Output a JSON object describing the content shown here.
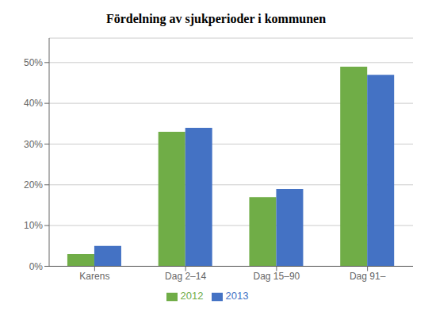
{
  "chart_data": {
    "type": "bar",
    "title": "Fördelning av sjukperioder i kommunen",
    "categories": [
      "Karens",
      "Dag 2–14",
      "Dag 15–90",
      "Dag 91–"
    ],
    "series": [
      {
        "name": "2012",
        "color": "#70AD47",
        "values": [
          0.03,
          0.33,
          0.17,
          0.49
        ]
      },
      {
        "name": "2013",
        "color": "#4472C4",
        "values": [
          0.05,
          0.34,
          0.19,
          0.47
        ]
      }
    ],
    "ylim": [
      0,
      0.56
    ],
    "yticks": [
      {
        "value": 0.0,
        "label": "0%"
      },
      {
        "value": 0.1,
        "label": "10%"
      },
      {
        "value": 0.2,
        "label": "20%"
      },
      {
        "value": 0.3,
        "label": "30%"
      },
      {
        "value": 0.4,
        "label": "40%"
      },
      {
        "value": 0.5,
        "label": "50%"
      }
    ],
    "grid": true,
    "legend": "bottom"
  }
}
